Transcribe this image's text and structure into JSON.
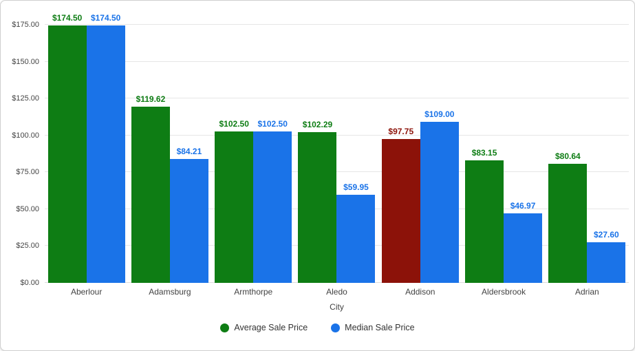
{
  "chart_data": {
    "type": "bar",
    "title": "",
    "xlabel": "City",
    "ylabel": "",
    "ylim": [
      0,
      175
    ],
    "grid": true,
    "legend_position": "bottom",
    "yticks": [
      {
        "value": 0,
        "label": "$0.00"
      },
      {
        "value": 25,
        "label": "$25.00"
      },
      {
        "value": 50,
        "label": "$50.00"
      },
      {
        "value": 75,
        "label": "$75.00"
      },
      {
        "value": 100,
        "label": "$100.00"
      },
      {
        "value": 125,
        "label": "$125.00"
      },
      {
        "value": 150,
        "label": "$150.00"
      },
      {
        "value": 175,
        "label": "$175.00"
      }
    ],
    "categories": [
      "Aberlour",
      "Adamsburg",
      "Armthorpe",
      "Aledo",
      "Addison",
      "Aldersbrook",
      "Adrian"
    ],
    "series": [
      {
        "name": "Average Sale Price",
        "color": "#0e7d14",
        "values": [
          174.5,
          119.62,
          102.5,
          102.29,
          97.75,
          83.15,
          80.64
        ],
        "labels": [
          "$174.50",
          "$119.62",
          "$102.50",
          "$102.29",
          "$97.75",
          "$83.15",
          "$80.64"
        ],
        "point_colors": [
          null,
          null,
          null,
          null,
          "#8c1209",
          null,
          null
        ]
      },
      {
        "name": "Median Sale Price",
        "color": "#1a73e8",
        "values": [
          174.5,
          84.21,
          102.5,
          59.95,
          109.0,
          46.97,
          27.6
        ],
        "labels": [
          "$174.50",
          "$84.21",
          "$102.50",
          "$59.95",
          "$109.00",
          "$46.97",
          "$27.60"
        ],
        "point_colors": [
          null,
          null,
          null,
          null,
          null,
          null,
          null
        ]
      }
    ],
    "legend": [
      {
        "label": "Average Sale Price",
        "color": "#0e7d14"
      },
      {
        "label": "Median Sale Price",
        "color": "#1a73e8"
      }
    ],
    "highlight_note": {
      "category": "Addison",
      "series": "Average Sale Price",
      "color": "#8c1209"
    }
  }
}
